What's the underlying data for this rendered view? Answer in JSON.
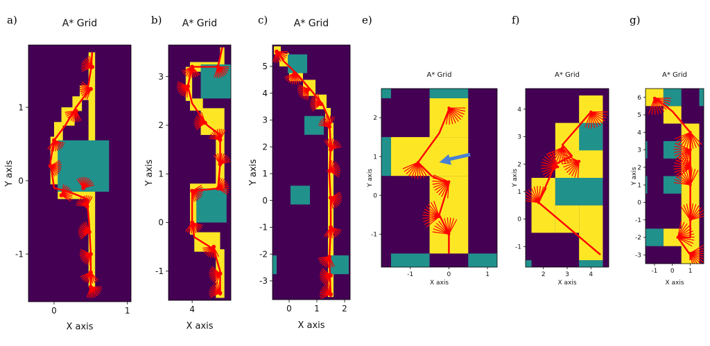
{
  "figure": {
    "colors": {
      "free": "#440154",
      "obstacle": "#21918c",
      "path": "#fde725",
      "trajectory": "#ff0000",
      "arrow": "#4a7fd4"
    }
  },
  "chart_data": [
    {
      "type": "heatmap",
      "panel_label": "a)",
      "title": "A* Grid",
      "xlabel": "X axis",
      "ylabel": "Y axis",
      "xlim": [
        -0.35,
        1.05
      ],
      "ylim": [
        -1.65,
        1.85
      ],
      "xticks": [
        0,
        1
      ],
      "xtick_labels": [
        "0",
        "1"
      ],
      "yticks": [
        -1,
        0,
        1
      ],
      "ytick_labels": [
        "-1",
        "0",
        "1"
      ],
      "obstacles": [
        [
          0.05,
          -0.15,
          0.75,
          0.55
        ]
      ],
      "path_cells": [
        [
          0.47,
          -1.45,
          0.56,
          1.75
        ],
        [
          0.35,
          1.1,
          0.5,
          1.3
        ],
        [
          0.25,
          0.95,
          0.38,
          1.15
        ],
        [
          0.1,
          0.75,
          0.28,
          1.0
        ],
        [
          0.0,
          0.5,
          0.12,
          0.8
        ],
        [
          -0.05,
          -0.05,
          0.07,
          0.6
        ],
        [
          0.05,
          -0.25,
          0.5,
          -0.05
        ]
      ],
      "trajectory": [
        [
          0.5,
          -1.45
        ],
        [
          0.5,
          -1.0
        ],
        [
          0.48,
          -0.6
        ],
        [
          0.45,
          -0.25
        ],
        [
          0.2,
          -0.15
        ],
        [
          0.0,
          -0.1
        ],
        [
          -0.05,
          0.25
        ],
        [
          0.0,
          0.55
        ],
        [
          0.15,
          0.75
        ],
        [
          0.3,
          1.0
        ],
        [
          0.45,
          1.2
        ],
        [
          0.5,
          1.5
        ],
        [
          0.52,
          1.75
        ]
      ],
      "fans": [
        [
          0.5,
          -1.45
        ],
        [
          0.5,
          -1.25
        ],
        [
          0.5,
          -1.0
        ],
        [
          0.48,
          -0.7
        ],
        [
          0.45,
          -0.35
        ],
        [
          0.4,
          -0.1
        ],
        [
          0.1,
          -0.2
        ],
        [
          -0.05,
          0.2
        ],
        [
          0.0,
          0.55
        ],
        [
          0.3,
          0.95
        ],
        [
          0.5,
          1.25
        ],
        [
          0.52,
          1.55
        ]
      ]
    },
    {
      "type": "heatmap",
      "panel_label": "b)",
      "title": "A* Grid",
      "xlabel": "X axis",
      "ylabel": "Y axis",
      "xlim": [
        3.45,
        4.9
      ],
      "ylim": [
        -1.6,
        3.65
      ],
      "xticks": [
        4
      ],
      "xtick_labels": [
        "4"
      ],
      "yticks": [
        -1,
        0,
        1,
        2,
        3
      ],
      "ytick_labels": [
        "-1",
        "0",
        "1",
        "2",
        "3"
      ],
      "obstacles": [
        [
          4.2,
          2.55,
          4.9,
          3.25
        ],
        [
          4.1,
          0,
          4.8,
          0.7
        ]
      ],
      "path_cells": [
        [
          4.65,
          3.0,
          4.75,
          3.6
        ],
        [
          3.95,
          3.1,
          4.7,
          3.3
        ],
        [
          3.85,
          2.5,
          4.0,
          3.2
        ],
        [
          3.95,
          2.3,
          4.25,
          2.55
        ],
        [
          4.2,
          1.8,
          4.75,
          2.35
        ],
        [
          4.55,
          0.65,
          4.75,
          1.8
        ],
        [
          3.95,
          0.6,
          4.6,
          0.8
        ],
        [
          3.95,
          -0.25,
          4.1,
          0.7
        ],
        [
          4.05,
          -0.6,
          4.65,
          -0.2
        ],
        [
          4.55,
          -1.55,
          4.75,
          -0.55
        ]
      ],
      "trajectory": [
        [
          4.7,
          3.6
        ],
        [
          4.6,
          3.2
        ],
        [
          4.0,
          3.2
        ],
        [
          3.9,
          2.8
        ],
        [
          4.0,
          2.45
        ],
        [
          4.35,
          2.0
        ],
        [
          4.65,
          1.8
        ],
        [
          4.65,
          1.2
        ],
        [
          4.6,
          0.7
        ],
        [
          4.0,
          0.65
        ],
        [
          4.0,
          0.0
        ],
        [
          4.05,
          -0.3
        ],
        [
          4.5,
          -0.55
        ],
        [
          4.65,
          -1.0
        ],
        [
          4.65,
          -1.5
        ]
      ],
      "fans": [
        [
          4.6,
          3.2
        ],
        [
          4.0,
          3.2
        ],
        [
          3.9,
          2.8
        ],
        [
          4.3,
          2.05
        ],
        [
          4.65,
          1.7
        ],
        [
          4.65,
          1.2
        ],
        [
          4.6,
          0.7
        ],
        [
          4.0,
          0.65
        ],
        [
          4.0,
          0.0
        ],
        [
          4.5,
          -0.5
        ],
        [
          4.65,
          -1.05
        ],
        [
          4.65,
          -1.45
        ]
      ]
    },
    {
      "type": "heatmap",
      "panel_label": "c)",
      "title": "A* Grid",
      "xlabel": "X axis",
      "ylabel": "Y axis",
      "xlim": [
        -0.6,
        2.2
      ],
      "ylim": [
        -3.7,
        5.8
      ],
      "xticks": [
        0,
        1,
        2
      ],
      "xtick_labels": [
        "0",
        "1",
        "2"
      ],
      "yticks": [
        -3,
        -2,
        -1,
        0,
        1,
        2,
        3,
        4,
        5
      ],
      "ytick_labels": [
        "-3",
        "-2",
        "-1",
        "0",
        "1",
        "2",
        "3",
        "4",
        "5"
      ],
      "obstacles": [
        [
          -0.05,
          4.75,
          0.65,
          5.45
        ],
        [
          0.55,
          2.45,
          1.25,
          3.15
        ],
        [
          0.05,
          -0.15,
          0.75,
          0.55
        ],
        [
          1.45,
          -2.75,
          2.15,
          -2.05
        ],
        [
          -0.6,
          -2.75,
          -0.45,
          -2.05
        ]
      ],
      "path_cells": [
        [
          -0.55,
          5.45,
          -0.3,
          5.75
        ],
        [
          -0.35,
          5.0,
          0.0,
          5.5
        ],
        [
          0.0,
          4.45,
          0.5,
          5.0
        ],
        [
          0.5,
          3.9,
          0.95,
          4.5
        ],
        [
          0.95,
          3.4,
          1.35,
          3.95
        ],
        [
          1.3,
          2.9,
          1.5,
          3.45
        ],
        [
          1.4,
          -3.6,
          1.6,
          2.9
        ]
      ],
      "trajectory": [
        [
          -0.45,
          5.6
        ],
        [
          -0.2,
          5.2
        ],
        [
          0.3,
          4.7
        ],
        [
          0.8,
          4.1
        ],
        [
          1.2,
          3.6
        ],
        [
          1.45,
          3.0
        ],
        [
          1.5,
          2.0
        ],
        [
          1.45,
          1.0
        ],
        [
          1.5,
          0.0
        ],
        [
          1.5,
          -1.0
        ],
        [
          1.45,
          -2.2
        ],
        [
          1.5,
          -3.6
        ]
      ],
      "fans": [
        [
          -0.45,
          5.55
        ],
        [
          0.2,
          4.75
        ],
        [
          0.7,
          4.15
        ],
        [
          1.15,
          3.6
        ],
        [
          1.45,
          2.75
        ],
        [
          1.5,
          1.9
        ],
        [
          1.45,
          1.1
        ],
        [
          1.5,
          0.1
        ],
        [
          1.5,
          -1.0
        ],
        [
          1.45,
          -2.1
        ],
        [
          1.5,
          -2.8
        ],
        [
          1.5,
          -3.5
        ]
      ]
    },
    {
      "type": "heatmap",
      "panel_label": "e)",
      "title": "A* Grid",
      "xlabel": "X axis",
      "ylabel": "Y axis",
      "xlim": [
        -1.75,
        1.25
      ],
      "ylim": [
        -1.85,
        2.75
      ],
      "xticks": [
        -1,
        0,
        1
      ],
      "xtick_labels": [
        "-1",
        "0",
        "1"
      ],
      "yticks": [
        -1,
        0,
        1,
        2
      ],
      "ytick_labels": [
        "-1",
        "0",
        "1",
        "2"
      ],
      "obstacles": [
        [
          -1.75,
          2.5,
          -1.5,
          2.75
        ],
        [
          -0.5,
          2.5,
          0.5,
          2.75
        ],
        [
          -1.75,
          0.5,
          -1.5,
          1.5
        ],
        [
          -1.5,
          -1.85,
          -0.5,
          -1.5
        ],
        [
          0.5,
          -1.85,
          1.25,
          -1.5
        ]
      ],
      "path_cells": [
        [
          -0.5,
          1.5,
          0.5,
          2.5
        ],
        [
          -1.5,
          0.5,
          0.5,
          1.5
        ],
        [
          -0.5,
          -1.5,
          0.5,
          0.5
        ]
      ],
      "trajectory": [
        [
          0.0,
          2.2
        ],
        [
          -0.25,
          1.6
        ],
        [
          -0.8,
          0.85
        ],
        [
          -0.45,
          0.5
        ],
        [
          0.0,
          0.3
        ],
        [
          -0.25,
          -0.5
        ],
        [
          0.0,
          -1.0
        ],
        [
          0.0,
          -1.5
        ]
      ],
      "fans": [
        [
          0.0,
          2.25
        ],
        [
          -0.8,
          0.85
        ],
        [
          0.0,
          0.35
        ],
        [
          -0.25,
          -0.55
        ],
        [
          0.0,
          -1.0
        ]
      ],
      "arrow": [
        [
          0.55,
          1.05
        ],
        [
          -0.25,
          0.85
        ]
      ]
    },
    {
      "type": "heatmap",
      "panel_label": "f)",
      "title": "A* Grid",
      "xlabel": "X axis",
      "ylabel": "Y axis",
      "xlim": [
        1.25,
        4.75
      ],
      "ylim": [
        -1.75,
        4.75
      ],
      "xticks": [
        2,
        3,
        4
      ],
      "xtick_labels": [
        "2",
        "3",
        "4"
      ],
      "yticks": [
        -1,
        0,
        1,
        2,
        3,
        4
      ],
      "ytick_labels": [
        "-1",
        "0",
        "1",
        "2",
        "3",
        "4"
      ],
      "obstacles": [
        [
          3.5,
          2.5,
          4.5,
          3.5
        ],
        [
          2.5,
          0.5,
          4.5,
          1.5
        ],
        [
          1.25,
          -1.75,
          1.5,
          -1.5
        ],
        [
          3.5,
          -1.75,
          4.5,
          -1.5
        ]
      ],
      "path_cells": [
        [
          3.5,
          3.5,
          4.5,
          4.5
        ],
        [
          2.5,
          1.5,
          4.5,
          3.5
        ],
        [
          1.5,
          -0.5,
          2.5,
          1.5
        ],
        [
          2.5,
          -0.5,
          3.5,
          0.5
        ],
        [
          3.5,
          -1.5,
          4.5,
          0.5
        ]
      ],
      "trajectory": [
        [
          4.0,
          3.9
        ],
        [
          3.4,
          3.3
        ],
        [
          2.8,
          2.7
        ],
        [
          3.2,
          2.3
        ],
        [
          2.5,
          2.0
        ],
        [
          1.8,
          0.6
        ],
        [
          4.4,
          -1.3
        ]
      ],
      "fans": [
        [
          4.0,
          3.9
        ],
        [
          2.8,
          2.6
        ],
        [
          3.5,
          2.1
        ],
        [
          2.6,
          1.9
        ],
        [
          1.8,
          0.6
        ]
      ]
    },
    {
      "type": "heatmap",
      "panel_label": "g)",
      "title": "A* Grid",
      "xlabel": "X axis",
      "ylabel": "Y axis",
      "xlim": [
        -1.5,
        1.75
      ],
      "ylim": [
        -3.5,
        6.5
      ],
      "xticks": [
        -1,
        0,
        1
      ],
      "xtick_labels": [
        "-1",
        "0",
        "1"
      ],
      "yticks": [
        -3,
        -2,
        -1,
        0,
        1,
        2,
        3,
        4,
        5,
        6
      ],
      "ytick_labels": [
        "-3",
        "-2",
        "-1",
        "0",
        "1",
        "2",
        "3",
        "4",
        "5",
        "6"
      ],
      "obstacles": [
        [
          -0.5,
          5.5,
          0.5,
          6.5
        ],
        [
          1.5,
          5.5,
          1.75,
          6.5
        ],
        [
          -0.5,
          2.5,
          0.5,
          3.5
        ],
        [
          -1.5,
          2.5,
          -1.4,
          3.5
        ],
        [
          -0.5,
          0.5,
          0.5,
          1.5
        ],
        [
          -1.5,
          0.5,
          -1.4,
          1.5
        ],
        [
          -1.5,
          -2.5,
          -0.5,
          -1.5
        ]
      ],
      "path_cells": [
        [
          -1.5,
          5.5,
          -0.5,
          6.5
        ],
        [
          -0.5,
          4.5,
          0.5,
          5.5
        ],
        [
          0.5,
          -3.5,
          1.5,
          4.5
        ],
        [
          -0.5,
          -2.5,
          0.5,
          -1.5
        ]
      ],
      "trajectory": [
        [
          -1.0,
          6.0
        ],
        [
          0.0,
          5.2
        ],
        [
          1.0,
          4.0
        ],
        [
          1.0,
          3.0
        ],
        [
          1.0,
          1.0
        ],
        [
          1.0,
          -1.0
        ],
        [
          1.0,
          -2.0
        ],
        [
          0.3,
          -2.0
        ],
        [
          1.0,
          -3.0
        ],
        [
          1.0,
          -3.3
        ]
      ],
      "fans": [
        [
          -1.0,
          5.95
        ],
        [
          1.0,
          4.0
        ],
        [
          1.0,
          3.0
        ],
        [
          1.0,
          2.0
        ],
        [
          1.0,
          1.0
        ],
        [
          1.0,
          -1.0
        ],
        [
          0.3,
          -2.0
        ],
        [
          1.0,
          -2.9
        ]
      ]
    }
  ]
}
